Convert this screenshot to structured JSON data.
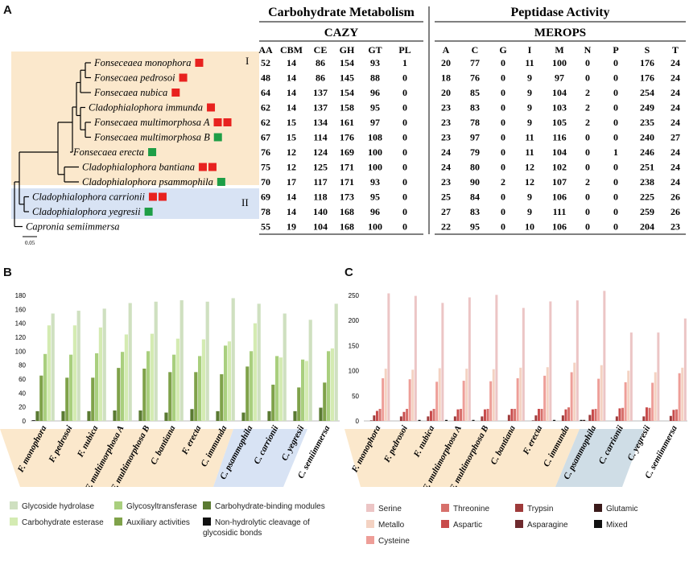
{
  "panels": {
    "a": "A",
    "b": "B",
    "c": "C"
  },
  "tree": {
    "scale_label": "0.05",
    "group_labels": [
      "I",
      "II"
    ],
    "group_colors": {
      "I": "#fbe8cc",
      "II": "#d8e3f4"
    },
    "marker_colors": {
      "red": "#e8221f",
      "green": "#1e9e46"
    },
    "taxa": [
      {
        "name": "Fonseceaea monophora",
        "markers": [
          "red"
        ]
      },
      {
        "name": "Fonsecaea pedrosoi",
        "markers": [
          "red"
        ]
      },
      {
        "name": "Fonsecaea nubica",
        "markers": [
          "red"
        ]
      },
      {
        "name": "Cladophialophora immunda",
        "markers": [
          "red"
        ]
      },
      {
        "name": "Fonsecaea multimorphosa A",
        "markers": [
          "red",
          "red"
        ]
      },
      {
        "name": "Fonsecaea multimorphosa B",
        "markers": [
          "green"
        ]
      },
      {
        "name": "Fonsecaea erecta",
        "markers": [
          "green"
        ]
      },
      {
        "name": "Cladophialophora bantiana",
        "markers": [
          "red",
          "red"
        ]
      },
      {
        "name": "Cladophialophora psammophila",
        "markers": [
          "green"
        ]
      },
      {
        "name": "Cladophialophora carrionii",
        "markers": [
          "red",
          "red"
        ]
      },
      {
        "name": "Cladophialophora yegresii",
        "markers": [
          "green"
        ]
      },
      {
        "name": "Capronia semiimmersa",
        "markers": []
      }
    ]
  },
  "tables": {
    "carb_title": "Carbohydrate Metabolism",
    "pep_title": "Peptidase Activity",
    "cazy_label": "CAZY",
    "merops_label": "MEROPS",
    "cazy_headers": [
      "AA",
      "CBM",
      "CE",
      "GH",
      "GT",
      "PL"
    ],
    "merops_headers": [
      "A",
      "C",
      "G",
      "I",
      "M",
      "N",
      "P",
      "S",
      "T"
    ],
    "cazy_rows": [
      [
        "52",
        "14",
        "86",
        "154",
        "93",
        "1"
      ],
      [
        "48",
        "14",
        "86",
        "145",
        "88",
        "0"
      ],
      [
        "64",
        "14",
        "137",
        "154",
        "96",
        "0"
      ],
      [
        "62",
        "14",
        "137",
        "158",
        "95",
        "0"
      ],
      [
        "62",
        "15",
        "134",
        "161",
        "97",
        "0"
      ],
      [
        "67",
        "15",
        "114",
        "176",
        "108",
        "0"
      ],
      [
        "76",
        "12",
        "124",
        "169",
        "100",
        "0"
      ],
      [
        "75",
        "12",
        "125",
        "171",
        "100",
        "0"
      ],
      [
        "70",
        "17",
        "117",
        "171",
        "93",
        "0"
      ],
      [
        "69",
        "14",
        "118",
        "173",
        "95",
        "0"
      ],
      [
        "78",
        "14",
        "140",
        "168",
        "96",
        "0"
      ],
      [
        "55",
        "19",
        "104",
        "168",
        "100",
        "0"
      ]
    ],
    "merops_rows": [
      [
        "20",
        "77",
        "0",
        "11",
        "100",
        "0",
        "0",
        "176",
        "24"
      ],
      [
        "18",
        "76",
        "0",
        "9",
        "97",
        "0",
        "0",
        "176",
        "24"
      ],
      [
        "20",
        "85",
        "0",
        "9",
        "104",
        "2",
        "0",
        "254",
        "24"
      ],
      [
        "23",
        "83",
        "0",
        "9",
        "103",
        "2",
        "0",
        "249",
        "24"
      ],
      [
        "23",
        "78",
        "0",
        "9",
        "105",
        "2",
        "0",
        "235",
        "24"
      ],
      [
        "23",
        "97",
        "0",
        "11",
        "116",
        "0",
        "0",
        "240",
        "27"
      ],
      [
        "24",
        "79",
        "0",
        "11",
        "104",
        "0",
        "1",
        "246",
        "24"
      ],
      [
        "24",
        "80",
        "0",
        "12",
        "102",
        "0",
        "0",
        "251",
        "24"
      ],
      [
        "23",
        "90",
        "2",
        "12",
        "107",
        "2",
        "0",
        "238",
        "24"
      ],
      [
        "25",
        "84",
        "0",
        "9",
        "106",
        "0",
        "0",
        "225",
        "26"
      ],
      [
        "27",
        "83",
        "0",
        "9",
        "111",
        "0",
        "0",
        "259",
        "26"
      ],
      [
        "22",
        "95",
        "0",
        "10",
        "106",
        "0",
        "0",
        "204",
        "23"
      ]
    ]
  },
  "chart_data": [
    {
      "type": "bar",
      "title": "",
      "xlabel": "",
      "ylabel": "",
      "ylim": [
        0,
        180
      ],
      "yticks": [
        "0",
        "20",
        "40",
        "60",
        "80",
        "100",
        "120",
        "140",
        "160",
        "180"
      ],
      "categories": [
        "F. monophora",
        "F. pedrosoi",
        "F. nubica",
        "F. multimorphosa  A",
        "F. multimorphosa B",
        "C. bantiana",
        "F. erecta",
        "C. immunda",
        "C. psammophila",
        "C. carrionii",
        "C. yegresii",
        "C. semiimmersa"
      ],
      "series": [
        {
          "name": "Non-hydrolytic cleavage of glycosidic bonds",
          "color": "#111111",
          "values": [
            1,
            0,
            0,
            0,
            0,
            0,
            0,
            0,
            0,
            0,
            0,
            0
          ]
        },
        {
          "name": "Carbohydrate-binding modules",
          "color": "#5a7a32",
          "values": [
            14,
            14,
            14,
            15,
            15,
            12,
            17,
            14,
            12,
            14,
            14,
            19
          ]
        },
        {
          "name": "Auxiliary activities",
          "color": "#7fa24a",
          "values": [
            65,
            62,
            62,
            76,
            75,
            70,
            70,
            67,
            78,
            52,
            48,
            55
          ]
        },
        {
          "name": "Glycosyltransferase",
          "color": "#a9cf7e",
          "values": [
            96,
            95,
            97,
            99,
            100,
            95,
            93,
            108,
            100,
            93,
            88,
            100
          ]
        },
        {
          "name": "Carbohydrate esterase",
          "color": "#d4ebb2",
          "values": [
            137,
            137,
            134,
            124,
            125,
            118,
            117,
            114,
            140,
            91,
            86,
            104
          ]
        },
        {
          "name": "Glycoside hydrolase",
          "color": "#cfe0c0",
          "values": [
            154,
            158,
            161,
            169,
            171,
            173,
            171,
            176,
            168,
            154,
            145,
            168
          ]
        }
      ],
      "legend": [
        "Glycoside hydrolase",
        "Glycosyltransferase",
        "Carbohydrate-binding modules",
        "Carbohydrate esterase",
        "Auxiliary activities",
        "Non-hydrolytic cleavage of glycosidic bonds"
      ],
      "legend_position": "bottom"
    },
    {
      "type": "bar",
      "title": "",
      "xlabel": "",
      "ylabel": "",
      "ylim": [
        0,
        250
      ],
      "yticks": [
        "0",
        "50",
        "100",
        "150",
        "200",
        "250"
      ],
      "categories": [
        "F. monophora",
        "F. pedrosoi",
        "F. nubica",
        "F. multimorphosa A",
        "F. multimorphosa B",
        "C. bantiana",
        "F. erecta",
        "C. immunda",
        "C. psammophila",
        "C. carrionii",
        "C. yegresii",
        "C. semiimmersa"
      ],
      "series": [
        {
          "name": "Mixed",
          "color": "#111111",
          "values": [
            0,
            0,
            2,
            2,
            2,
            0,
            0,
            2,
            2,
            0,
            0,
            0
          ]
        },
        {
          "name": "Glutamic",
          "color": "#3a1a1a",
          "values": [
            0,
            0,
            0,
            0,
            0,
            0,
            0,
            0,
            2,
            0,
            0,
            0
          ]
        },
        {
          "name": "Asparagine",
          "color": "#6e2a2e",
          "values": [
            1,
            0,
            0,
            0,
            0,
            0,
            1,
            0,
            0,
            0,
            0,
            0
          ]
        },
        {
          "name": "Trypsin",
          "color": "#9e3a3a",
          "values": [
            11,
            9,
            9,
            9,
            9,
            12,
            11,
            11,
            12,
            9,
            9,
            10
          ]
        },
        {
          "name": "Aspartic",
          "color": "#c84b4b",
          "values": [
            20,
            18,
            20,
            23,
            23,
            24,
            24,
            23,
            23,
            25,
            27,
            22
          ]
        },
        {
          "name": "Threonine",
          "color": "#d7706b",
          "values": [
            24,
            24,
            24,
            24,
            24,
            24,
            24,
            27,
            24,
            26,
            26,
            23
          ]
        },
        {
          "name": "Cysteine",
          "color": "#ee9e98",
          "values": [
            85,
            83,
            78,
            80,
            79,
            85,
            90,
            97,
            84,
            77,
            76,
            95
          ]
        },
        {
          "name": "Metallo",
          "color": "#f4d2c2",
          "values": [
            104,
            102,
            105,
            104,
            103,
            106,
            107,
            116,
            111,
            100,
            97,
            106
          ]
        },
        {
          "name": "Serine",
          "color": "#ecc5c5",
          "values": [
            254,
            249,
            235,
            246,
            251,
            225,
            238,
            240,
            259,
            176,
            176,
            204
          ]
        }
      ],
      "legend": [
        "Serine",
        "Threonine",
        "Trypsin",
        "Glutamic",
        "Metallo",
        "Aspartic",
        "Asparagine",
        "Mixed",
        "Cysteine"
      ],
      "legend_position": "bottom"
    }
  ]
}
